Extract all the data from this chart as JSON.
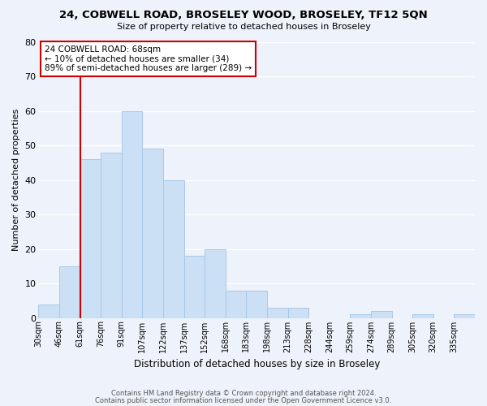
{
  "title": "24, COBWELL ROAD, BROSELEY WOOD, BROSELEY, TF12 5QN",
  "subtitle": "Size of property relative to detached houses in Broseley",
  "xlabel": "Distribution of detached houses by size in Broseley",
  "ylabel": "Number of detached properties",
  "bin_labels": [
    "30sqm",
    "46sqm",
    "61sqm",
    "76sqm",
    "91sqm",
    "107sqm",
    "122sqm",
    "137sqm",
    "152sqm",
    "168sqm",
    "183sqm",
    "198sqm",
    "213sqm",
    "228sqm",
    "244sqm",
    "259sqm",
    "274sqm",
    "289sqm",
    "305sqm",
    "320sqm",
    "335sqm"
  ],
  "bar_values": [
    4,
    15,
    46,
    48,
    60,
    49,
    40,
    18,
    20,
    8,
    8,
    3,
    3,
    0,
    0,
    1,
    2,
    0,
    1,
    0,
    1
  ],
  "bar_color": "#cce0f5",
  "bar_edge_color": "#a8c8e8",
  "vline_x_index": 2,
  "vline_color": "#cc0000",
  "ylim": [
    0,
    80
  ],
  "yticks": [
    0,
    10,
    20,
    30,
    40,
    50,
    60,
    70,
    80
  ],
  "annotation_text": "24 COBWELL ROAD: 68sqm\n← 10% of detached houses are smaller (34)\n89% of semi-detached houses are larger (289) →",
  "annotation_box_color": "#ffffff",
  "annotation_box_edgecolor": "#cc0000",
  "footer_line1": "Contains HM Land Registry data © Crown copyright and database right 2024.",
  "footer_line2": "Contains public sector information licensed under the Open Government Licence v3.0.",
  "background_color": "#eef2fa",
  "grid_color": "#ffffff"
}
